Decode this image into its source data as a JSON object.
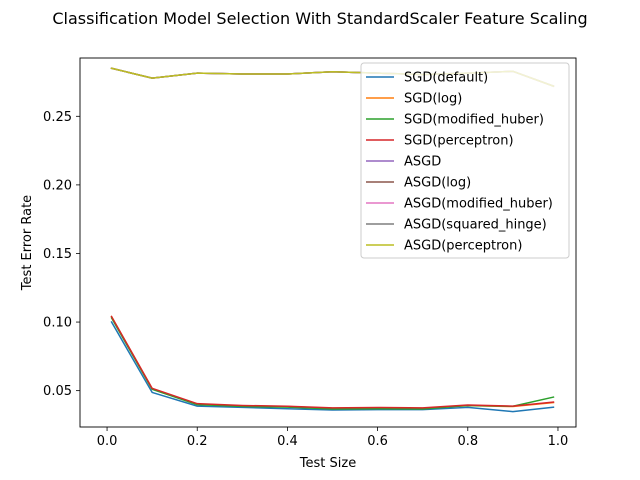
{
  "chart_data": {
    "type": "line",
    "title": "Classification Model Selection With StandardScaler Feature Scaling",
    "xlabel": "Test Size",
    "ylabel": "Test Error Rate",
    "xlim": [
      -0.06,
      1.04
    ],
    "ylim": [
      0.0235,
      0.2925
    ],
    "x_ticks": [
      0.0,
      0.2,
      0.4,
      0.6,
      0.8,
      1.0
    ],
    "x_tick_labels": [
      "0.0",
      "0.2",
      "0.4",
      "0.6",
      "0.8",
      "1.0"
    ],
    "y_ticks": [
      0.05,
      0.1,
      0.15,
      0.2,
      0.25
    ],
    "y_tick_labels": [
      "0.05",
      "0.10",
      "0.15",
      "0.20",
      "0.25"
    ],
    "grid": false,
    "legend_position": "top-right",
    "x": [
      0.01,
      0.1,
      0.2,
      0.3,
      0.4,
      0.5,
      0.6,
      0.7,
      0.8,
      0.9,
      0.99
    ],
    "series": [
      {
        "name": "SGD(default)",
        "color": "#1f77b4",
        "values": [
          0.1,
          0.0487,
          0.0387,
          0.0378,
          0.0368,
          0.0359,
          0.0362,
          0.0362,
          0.0378,
          0.0347,
          0.0379
        ]
      },
      {
        "name": "SGD(log)",
        "color": "#ff7f0e",
        "values": [
          0.104,
          0.0513,
          0.0401,
          0.0389,
          0.0384,
          0.0372,
          0.0375,
          0.0371,
          0.0391,
          0.0384,
          0.0413
        ]
      },
      {
        "name": "SGD(modified_huber)",
        "color": "#2ca02c",
        "values": [
          0.103,
          0.051,
          0.0398,
          0.0385,
          0.038,
          0.0366,
          0.0368,
          0.0366,
          0.0392,
          0.0386,
          0.0453
        ]
      },
      {
        "name": "SGD(perceptron)",
        "color": "#d62728",
        "values": [
          0.104,
          0.0517,
          0.0405,
          0.0392,
          0.0386,
          0.0374,
          0.0377,
          0.0374,
          0.0395,
          0.0387,
          0.0417
        ]
      },
      {
        "name": "ASGD",
        "color": "#9467bd",
        "values": [
          0.285,
          0.2778,
          0.2815,
          0.2808,
          0.2808,
          0.2825,
          0.2815,
          0.2805,
          0.2815,
          0.2828,
          0.272
        ]
      },
      {
        "name": "ASGD(log)",
        "color": "#8c564b",
        "values": [
          0.285,
          0.2778,
          0.2815,
          0.2808,
          0.2808,
          0.2825,
          0.2815,
          0.2805,
          0.2815,
          0.2828,
          0.272
        ]
      },
      {
        "name": "ASGD(modified_huber)",
        "color": "#e377c2",
        "values": [
          0.285,
          0.2778,
          0.2815,
          0.2808,
          0.2808,
          0.2825,
          0.2815,
          0.2805,
          0.2815,
          0.2828,
          0.272
        ]
      },
      {
        "name": "ASGD(squared_hinge)",
        "color": "#7f7f7f",
        "values": [
          0.285,
          0.2778,
          0.2815,
          0.2808,
          0.2808,
          0.2825,
          0.2815,
          0.2805,
          0.2815,
          0.2828,
          0.272
        ]
      },
      {
        "name": "ASGD(perceptron)",
        "color": "#bcbd22",
        "values": [
          0.285,
          0.2778,
          0.2815,
          0.2808,
          0.2808,
          0.2825,
          0.2815,
          0.2805,
          0.2815,
          0.2828,
          0.272
        ]
      }
    ]
  }
}
